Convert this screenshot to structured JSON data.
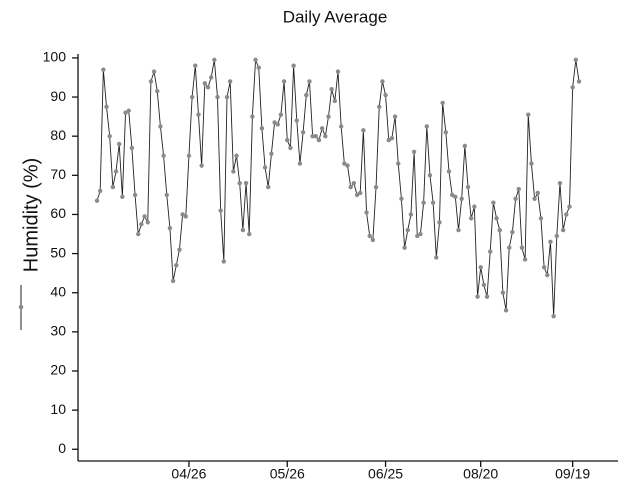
{
  "chart_data": {
    "type": "line",
    "title": "Daily Average",
    "ylabel": "Humidity (%)",
    "categories": [
      null,
      null,
      null,
      null,
      null,
      null,
      null,
      null,
      null,
      null,
      null,
      null,
      null,
      null,
      null,
      null,
      null,
      null,
      null,
      null,
      null,
      null,
      null,
      null,
      null,
      null,
      null,
      null,
      null,
      "04/26",
      null,
      null,
      null,
      null,
      null,
      null,
      null,
      null,
      null,
      null,
      null,
      null,
      null,
      null,
      null,
      null,
      null,
      null,
      null,
      null,
      null,
      null,
      null,
      null,
      null,
      null,
      null,
      null,
      null,
      null,
      "05/26",
      null,
      null,
      null,
      null,
      null,
      null,
      null,
      null,
      null,
      null,
      null,
      null,
      null,
      null,
      null,
      null,
      null,
      null,
      null,
      null,
      null,
      null,
      null,
      null,
      null,
      null,
      null,
      null,
      null,
      null,
      "06/25",
      null,
      null,
      null,
      null,
      null,
      null,
      null,
      null,
      null,
      null,
      null,
      null,
      null,
      null,
      null,
      null,
      null,
      null,
      null,
      null,
      null,
      null,
      null,
      null,
      null,
      null,
      null,
      null,
      null,
      "08/20",
      null,
      null,
      null,
      null,
      null,
      null,
      null,
      null,
      null,
      null,
      null,
      null,
      null,
      null,
      null,
      null,
      null,
      null,
      null,
      null,
      null,
      null,
      null,
      null,
      null,
      null,
      null,
      null,
      "09/19",
      null,
      null
    ],
    "values": [
      63.5,
      66,
      97,
      87.5,
      80,
      67,
      71,
      78,
      64.5,
      86,
      86.5,
      77,
      65,
      55,
      57.5,
      59.5,
      58,
      94,
      96.5,
      91.5,
      82.5,
      75,
      65,
      56.5,
      43,
      47,
      51,
      60,
      59.5,
      75,
      90,
      98,
      85.5,
      72.5,
      93.5,
      92.5,
      95,
      99.5,
      90,
      61,
      48,
      90,
      94,
      71,
      75,
      68,
      56,
      68,
      55,
      85,
      99.5,
      97.5,
      82,
      72,
      67,
      75.5,
      83.5,
      83,
      85.5,
      94,
      79,
      77,
      98,
      84,
      73,
      81,
      90.5,
      94,
      80,
      80,
      79,
      82,
      80,
      85,
      92,
      89,
      96.5,
      82.5,
      73,
      72.5,
      67,
      68,
      65,
      65.5,
      81.5,
      60.5,
      54.5,
      53.5,
      67,
      87.5,
      94,
      90.5,
      79,
      79.5,
      85,
      73,
      64,
      51.5,
      56,
      60,
      76,
      54.5,
      55,
      63,
      82.5,
      70,
      63,
      49,
      58,
      88.5,
      81,
      71,
      65,
      64.5,
      56,
      64,
      77.5,
      67,
      59,
      62,
      39,
      46.5,
      42,
      39,
      50.5,
      63,
      59,
      56,
      40,
      35.5,
      51.5,
      55.5,
      64,
      66.5,
      51.5,
      48.5,
      85.5,
      73,
      64,
      65.5,
      59,
      46.5,
      44.5,
      53,
      34,
      54.5,
      68,
      56,
      60,
      62,
      92.5,
      99.5,
      94
    ],
    "color": "#8a8a8a",
    "line_color": "#222222",
    "ylim": [
      -3,
      101
    ],
    "yticks": [
      0,
      10,
      20,
      30,
      40,
      50,
      60,
      70,
      80,
      90,
      100
    ]
  }
}
